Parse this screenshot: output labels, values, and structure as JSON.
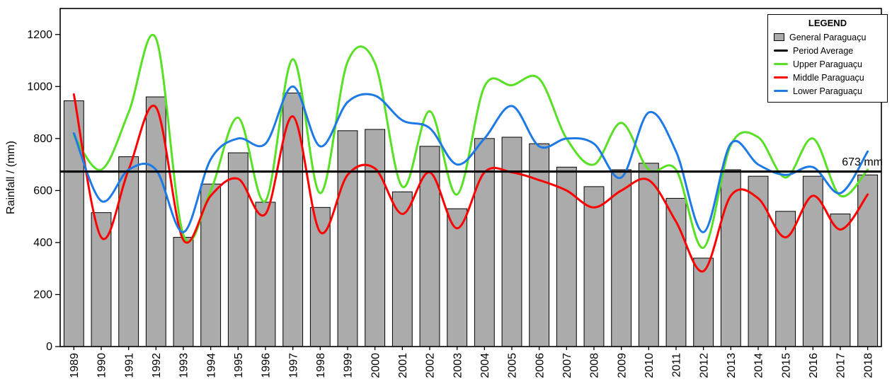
{
  "chart_data": {
    "type": "bar+line",
    "title": "",
    "ylabel": "Rainfall / (mm)",
    "ylim": [
      0,
      1300
    ],
    "yticks": [
      0,
      200,
      400,
      600,
      800,
      1000,
      1200
    ],
    "grid": false,
    "legend_position": "top-right",
    "categories": [
      "1989",
      "1990",
      "1991",
      "1992",
      "1993",
      "1994",
      "1995",
      "1996",
      "1997",
      "1998",
      "1999",
      "2000",
      "2001",
      "2002",
      "2003",
      "2004",
      "2005",
      "2006",
      "2007",
      "2008",
      "2009",
      "2010",
      "2011",
      "2012",
      "2013",
      "2014",
      "2015",
      "2016",
      "2017",
      "2018"
    ],
    "bar_series": {
      "name": "General Paraguaçu",
      "color": "#ABABAB",
      "values": [
        945,
        515,
        730,
        960,
        420,
        625,
        745,
        555,
        975,
        535,
        830,
        835,
        595,
        770,
        530,
        800,
        805,
        780,
        690,
        615,
        680,
        705,
        570,
        340,
        680,
        655,
        520,
        655,
        510,
        660
      ]
    },
    "line_series": [
      {
        "name": "Upper Paraguaçu",
        "color": "#58E024",
        "values": [
          810,
          680,
          900,
          1185,
          430,
          600,
          880,
          560,
          1105,
          590,
          1095,
          1090,
          615,
          905,
          585,
          1000,
          1005,
          1030,
          800,
          700,
          860,
          680,
          680,
          380,
          775,
          805,
          650,
          800,
          580,
          680
        ]
      },
      {
        "name": "Middle Paraguaçu",
        "color": "#FF0000",
        "values": [
          970,
          420,
          680,
          920,
          410,
          580,
          645,
          510,
          885,
          440,
          660,
          685,
          510,
          670,
          455,
          670,
          670,
          640,
          600,
          535,
          600,
          640,
          480,
          290,
          580,
          570,
          420,
          580,
          450,
          585
        ]
      },
      {
        "name": "Lower Paraguaçu",
        "color": "#1C79E6",
        "values": [
          820,
          560,
          680,
          680,
          440,
          720,
          800,
          780,
          1000,
          770,
          940,
          965,
          870,
          840,
          700,
          800,
          925,
          770,
          800,
          780,
          650,
          900,
          750,
          440,
          780,
          700,
          660,
          690,
          590,
          750
        ]
      }
    ],
    "average": {
      "name": "Period Average",
      "value": 673,
      "label": "673 mm",
      "color": "#000000"
    }
  },
  "legend": {
    "title": "LEGEND",
    "items": [
      {
        "label": "General Paraguaçu",
        "swatch": "box",
        "color": "#ABABAB"
      },
      {
        "label": "Period Average",
        "swatch": "line",
        "color": "#000000"
      },
      {
        "label": "Upper Paraguaçu",
        "swatch": "line",
        "color": "#58E024"
      },
      {
        "label": "Middle Paraguaçu",
        "swatch": "line",
        "color": "#FF0000"
      },
      {
        "label": "Lower Paraguaçu",
        "swatch": "line",
        "color": "#1C79E6"
      }
    ]
  }
}
